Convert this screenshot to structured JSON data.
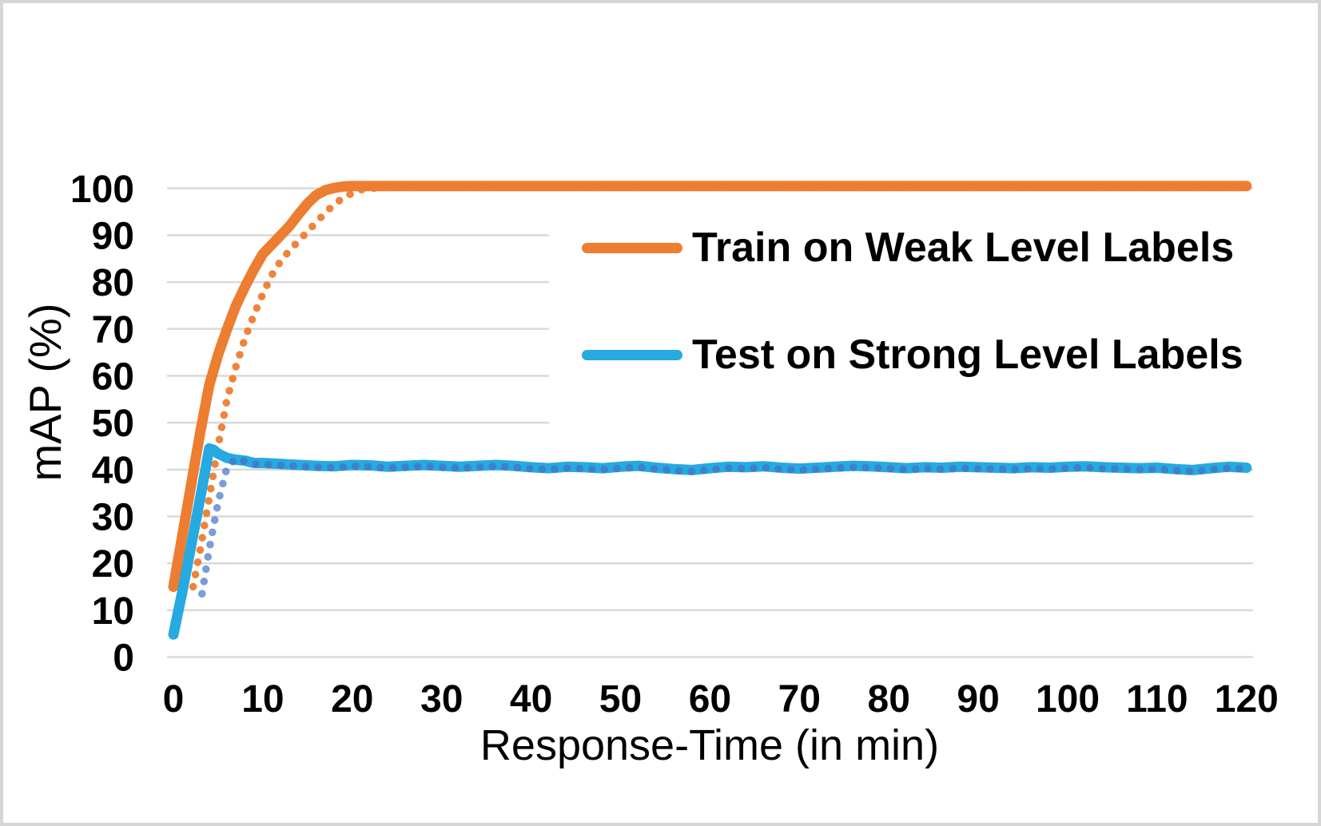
{
  "chart_data": {
    "type": "line",
    "title": "",
    "xlabel": "Response-Time (in min)",
    "ylabel": "mAP (%)",
    "xlim": [
      0,
      120
    ],
    "ylim": [
      0,
      100
    ],
    "x_ticks": [
      0,
      10,
      20,
      30,
      40,
      50,
      60,
      70,
      80,
      90,
      100,
      110,
      120
    ],
    "y_ticks": [
      0,
      10,
      20,
      30,
      40,
      50,
      60,
      70,
      80,
      90,
      100
    ],
    "grid": "horizontal",
    "legend_position": "inside-upper-right",
    "colors": {
      "train_orange": "#ED7D31",
      "test_blue": "#27A9E1",
      "dotted_blue": "#4472C4",
      "gridline": "#D9D9D9",
      "text": "#000000",
      "frame_border": "#D6D6D6",
      "background": "#FFFFFF"
    },
    "legend": [
      {
        "label": "Train on Weak Level Labels",
        "color": "#ED7D31"
      },
      {
        "label": "Test on Strong Level Labels",
        "color": "#27A9E1"
      }
    ],
    "series": [
      {
        "name": "Train on Weak Level Labels (dotted)",
        "style": "dotted",
        "color": "#ED7D31",
        "opacity": 0.95,
        "points": [
          [
            2.2,
            15
          ],
          [
            3,
            23
          ],
          [
            4,
            34
          ],
          [
            5,
            45
          ],
          [
            6,
            55
          ],
          [
            7,
            62
          ],
          [
            8,
            68
          ],
          [
            9,
            73
          ],
          [
            10,
            77.5
          ],
          [
            11,
            81.5
          ],
          [
            12,
            84.5
          ],
          [
            13,
            86.8
          ],
          [
            14,
            88.8
          ],
          [
            15,
            90.8
          ],
          [
            16,
            92.8
          ],
          [
            17,
            94.8
          ],
          [
            18,
            96.6
          ],
          [
            19,
            98
          ],
          [
            20,
            99
          ],
          [
            21,
            99.7
          ],
          [
            22,
            100
          ],
          [
            24,
            100.2
          ],
          [
            30,
            100.2
          ],
          [
            60,
            100.2
          ],
          [
            90,
            100.2
          ],
          [
            120,
            100.2
          ]
        ]
      },
      {
        "name": "Train on Weak Level Labels",
        "style": "solid",
        "color": "#ED7D31",
        "opacity": 1,
        "points": [
          [
            0,
            15
          ],
          [
            1,
            26
          ],
          [
            2,
            37
          ],
          [
            3,
            48
          ],
          [
            4,
            58
          ],
          [
            5,
            64.5
          ],
          [
            6,
            70
          ],
          [
            7,
            75
          ],
          [
            8,
            79
          ],
          [
            9,
            82.7
          ],
          [
            10,
            86
          ],
          [
            11,
            88
          ],
          [
            12,
            90
          ],
          [
            13,
            92
          ],
          [
            14,
            94.5
          ],
          [
            15,
            96.8
          ],
          [
            16,
            98.6
          ],
          [
            17,
            99.6
          ],
          [
            18,
            100.1
          ],
          [
            19,
            100.4
          ],
          [
            20,
            100.5
          ],
          [
            25,
            100.5
          ],
          [
            40,
            100.5
          ],
          [
            60,
            100.5
          ],
          [
            80,
            100.5
          ],
          [
            100,
            100.5
          ],
          [
            120,
            100.5
          ]
        ]
      },
      {
        "name": "Test on Strong Level Labels",
        "style": "solid",
        "color": "#27A9E1",
        "opacity": 1,
        "points": [
          [
            0,
            4.8
          ],
          [
            1,
            14
          ],
          [
            2,
            24
          ],
          [
            3,
            34
          ],
          [
            4,
            44.5
          ],
          [
            4.5,
            44.2
          ],
          [
            5,
            43.4
          ],
          [
            6,
            42.5
          ],
          [
            7,
            42.1
          ],
          [
            8,
            41.9
          ],
          [
            9,
            41.4
          ],
          [
            10,
            41.4
          ],
          [
            12,
            41.2
          ],
          [
            14,
            41.0
          ],
          [
            16,
            40.8
          ],
          [
            18,
            40.7
          ],
          [
            20,
            41.0
          ],
          [
            22,
            40.9
          ],
          [
            24,
            40.6
          ],
          [
            26,
            40.8
          ],
          [
            28,
            41.0
          ],
          [
            30,
            40.8
          ],
          [
            32,
            40.6
          ],
          [
            34,
            40.8
          ],
          [
            36,
            41.0
          ],
          [
            38,
            40.8
          ],
          [
            40,
            40.5
          ],
          [
            42,
            40.3
          ],
          [
            44,
            40.6
          ],
          [
            46,
            40.5
          ],
          [
            48,
            40.3
          ],
          [
            50,
            40.6
          ],
          [
            52,
            40.8
          ],
          [
            54,
            40.4
          ],
          [
            56,
            40.1
          ],
          [
            58,
            39.9
          ],
          [
            60,
            40.3
          ],
          [
            62,
            40.6
          ],
          [
            64,
            40.5
          ],
          [
            66,
            40.7
          ],
          [
            68,
            40.4
          ],
          [
            70,
            40.2
          ],
          [
            72,
            40.4
          ],
          [
            74,
            40.6
          ],
          [
            76,
            40.8
          ],
          [
            78,
            40.7
          ],
          [
            80,
            40.5
          ],
          [
            82,
            40.3
          ],
          [
            84,
            40.5
          ],
          [
            86,
            40.4
          ],
          [
            88,
            40.6
          ],
          [
            90,
            40.5
          ],
          [
            92,
            40.4
          ],
          [
            94,
            40.3
          ],
          [
            96,
            40.5
          ],
          [
            98,
            40.4
          ],
          [
            100,
            40.6
          ],
          [
            102,
            40.7
          ],
          [
            104,
            40.5
          ],
          [
            106,
            40.4
          ],
          [
            108,
            40.3
          ],
          [
            110,
            40.4
          ],
          [
            112,
            40.1
          ],
          [
            114,
            39.9
          ],
          [
            116,
            40.3
          ],
          [
            118,
            40.6
          ],
          [
            120,
            40.4
          ]
        ]
      },
      {
        "name": "Test on Strong Level Labels (dotted)",
        "style": "dotted",
        "color": "#4472C4",
        "opacity": 0.7,
        "points": [
          [
            3.2,
            13.5
          ],
          [
            4,
            23
          ],
          [
            5,
            33
          ],
          [
            6,
            40.5
          ],
          [
            7,
            42.3
          ],
          [
            8,
            41.8
          ],
          [
            9,
            41.2
          ],
          [
            10,
            41.1
          ],
          [
            12,
            40.9
          ],
          [
            14,
            40.7
          ],
          [
            16,
            40.5
          ],
          [
            18,
            40.4
          ],
          [
            20,
            40.7
          ],
          [
            22,
            40.6
          ],
          [
            24,
            40.3
          ],
          [
            26,
            40.5
          ],
          [
            28,
            40.7
          ],
          [
            30,
            40.5
          ],
          [
            32,
            40.3
          ],
          [
            34,
            40.5
          ],
          [
            36,
            40.7
          ],
          [
            38,
            40.5
          ],
          [
            40,
            40.2
          ],
          [
            42,
            40.0
          ],
          [
            44,
            40.3
          ],
          [
            46,
            40.2
          ],
          [
            48,
            40.0
          ],
          [
            50,
            40.3
          ],
          [
            52,
            40.5
          ],
          [
            54,
            40.1
          ],
          [
            56,
            39.8
          ],
          [
            58,
            39.6
          ],
          [
            60,
            40.0
          ],
          [
            62,
            40.3
          ],
          [
            64,
            40.2
          ],
          [
            66,
            40.4
          ],
          [
            68,
            40.1
          ],
          [
            70,
            39.9
          ],
          [
            72,
            40.1
          ],
          [
            74,
            40.3
          ],
          [
            76,
            40.5
          ],
          [
            78,
            40.4
          ],
          [
            80,
            40.2
          ],
          [
            82,
            40.0
          ],
          [
            84,
            40.2
          ],
          [
            86,
            40.1
          ],
          [
            88,
            40.3
          ],
          [
            90,
            40.2
          ],
          [
            92,
            40.1
          ],
          [
            94,
            40.0
          ],
          [
            96,
            40.2
          ],
          [
            98,
            40.1
          ],
          [
            100,
            40.3
          ],
          [
            102,
            40.4
          ],
          [
            104,
            40.2
          ],
          [
            106,
            40.1
          ],
          [
            108,
            40.0
          ],
          [
            110,
            40.1
          ],
          [
            112,
            39.8
          ],
          [
            114,
            39.6
          ],
          [
            116,
            40.0
          ],
          [
            118,
            40.3
          ],
          [
            120,
            40.1
          ]
        ]
      }
    ]
  }
}
